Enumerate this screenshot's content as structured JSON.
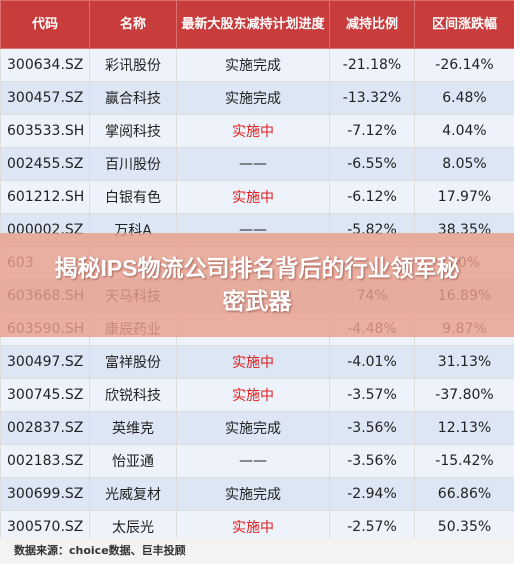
{
  "table": {
    "headers": [
      "代码",
      "名称",
      "最新大股东减持计划进度",
      "减持比例",
      "区间涨跌幅"
    ],
    "rows": [
      {
        "code": "300634.SZ",
        "name": "彩讯股份",
        "progress": "实施完成",
        "ratio": "-21.18%",
        "change": "-26.14%",
        "red": false
      },
      {
        "code": "300457.SZ",
        "name": "赢合科技",
        "progress": "实施完成",
        "ratio": "-13.32%",
        "change": "6.48%",
        "red": false
      },
      {
        "code": "603533.SH",
        "name": "掌阅科技",
        "progress": "实施中",
        "ratio": "-7.12%",
        "change": "4.04%",
        "red": true
      },
      {
        "code": "002455.SZ",
        "name": "百川股份",
        "progress": "——",
        "ratio": "-6.55%",
        "change": "8.05%",
        "red": false
      },
      {
        "code": "601212.SH",
        "name": "白银有色",
        "progress": "实施中",
        "ratio": "-6.12%",
        "change": "17.97%",
        "red": true
      },
      {
        "code": "000002.SZ",
        "name": "万科A",
        "progress": "——",
        "ratio": "-5.82%",
        "change": "38.35%",
        "red": false
      },
      {
        "code": "603",
        "name": "",
        "progress": "",
        "ratio": "",
        "change": "00%",
        "red": false
      },
      {
        "code": "603668.SH",
        "name": "天马科技",
        "progress": "",
        "ratio": "74%",
        "change": "16.89%",
        "red": false
      },
      {
        "code": "603590.SH",
        "name": "康辰药业",
        "progress": "",
        "ratio": "-4.48%",
        "change": "9.87%",
        "red": false
      },
      {
        "code": "300497.SZ",
        "name": "富祥股份",
        "progress": "实施中",
        "ratio": "-4.01%",
        "change": "31.13%",
        "red": true
      },
      {
        "code": "300745.SZ",
        "name": "欣锐科技",
        "progress": "实施中",
        "ratio": "-3.57%",
        "change": "-37.80%",
        "red": true
      },
      {
        "code": "002837.SZ",
        "name": "英维克",
        "progress": "实施完成",
        "ratio": "-3.56%",
        "change": "12.13%",
        "red": false
      },
      {
        "code": "002183.SZ",
        "name": "怡亚通",
        "progress": "——",
        "ratio": "-3.56%",
        "change": "-15.42%",
        "red": false
      },
      {
        "code": "300699.SZ",
        "name": "光威复材",
        "progress": "实施完成",
        "ratio": "-2.94%",
        "change": "66.86%",
        "red": false
      },
      {
        "code": "300570.SZ",
        "name": "太辰光",
        "progress": "实施中",
        "ratio": "-2.57%",
        "change": "50.35%",
        "red": true
      }
    ]
  },
  "source": "数据来源：choice数据、巨丰投顾",
  "banner": {
    "title": "揭秘IPS物流公司排名背后的行业领军秘密武器"
  },
  "colors": {
    "header_bg": "#c83c3c",
    "row_odd": "#eef3fb",
    "row_even": "#dce6f5",
    "highlight_text": "#e02020",
    "banner_bg": "#e8a08c"
  }
}
